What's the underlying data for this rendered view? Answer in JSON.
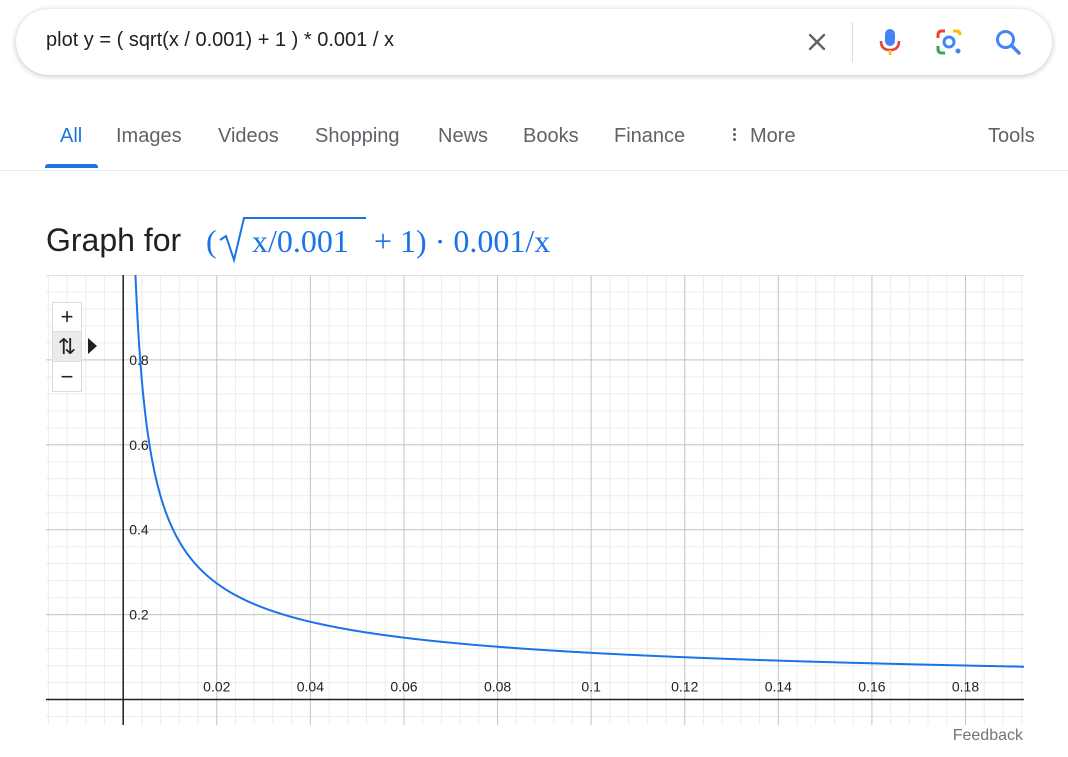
{
  "search": {
    "query": "plot y = ( sqrt(x / 0.001) + 1 ) * 0.001 / x",
    "icons": [
      "clear-icon",
      "mic-icon",
      "lens-icon",
      "search-icon"
    ]
  },
  "tabs": [
    {
      "label": "All",
      "active": true
    },
    {
      "label": "Images"
    },
    {
      "label": "Videos"
    },
    {
      "label": "Shopping"
    },
    {
      "label": "News"
    },
    {
      "label": "Books"
    },
    {
      "label": "Finance"
    },
    {
      "label": "More",
      "icon": "vertical-dots-icon"
    }
  ],
  "tools_label": "Tools",
  "graph": {
    "title_prefix": "Graph for",
    "formula_parts": {
      "open": "(",
      "radicand": "x/0.001",
      "rest": "+ 1) · 0.001/x"
    },
    "zoom_in": "+",
    "zoom_out": "−",
    "pan_symbol": "⇅"
  },
  "chart_data": {
    "type": "line",
    "function": "y = (sqrt(x/0.001) + 1) * 0.001 / x",
    "xlim": [
      -0.0165,
      0.1925
    ],
    "ylim": [
      -0.06,
      1.0
    ],
    "x_tick_labels": [
      "0.02",
      "0.04",
      "0.06",
      "0.08",
      "0.1",
      "0.12",
      "0.14",
      "0.16",
      "0.18"
    ],
    "x_ticks": [
      0.02,
      0.04,
      0.06,
      0.08,
      0.1,
      0.12,
      0.14,
      0.16,
      0.18
    ],
    "y_tick_labels": [
      "0.2",
      "0.4",
      "0.6",
      "0.8"
    ],
    "y_ticks": [
      0.2,
      0.4,
      0.6,
      0.8
    ],
    "grid": true,
    "line_color": "#1a73e8",
    "axis_color": "#202124"
  },
  "feedback_label": "Feedback"
}
